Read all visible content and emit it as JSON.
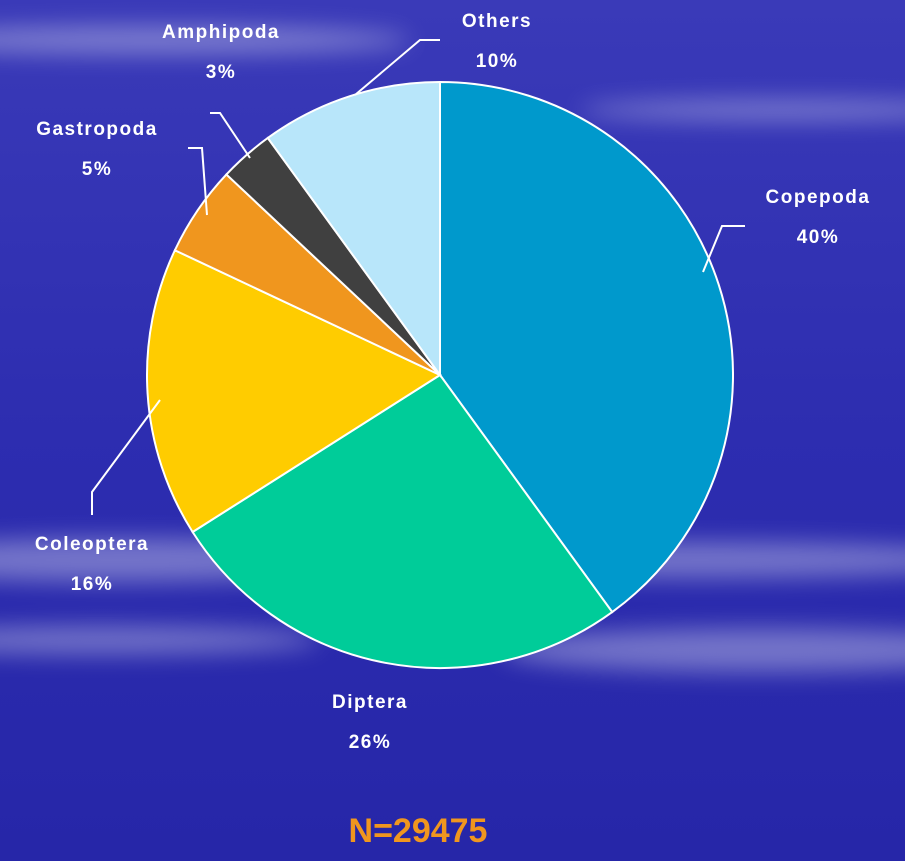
{
  "chart_data": {
    "type": "pie",
    "categories": [
      "Copepoda",
      "Diptera",
      "Coleoptera",
      "Gastropoda",
      "Amphipoda",
      "Others"
    ],
    "values": [
      40,
      26,
      16,
      5,
      3,
      10
    ],
    "value_labels": [
      "40%",
      "26%",
      "16%",
      "5%",
      "3%",
      "10%"
    ],
    "colors": [
      "#0099cc",
      "#00cc99",
      "#ffcc00",
      "#f0961e",
      "#404040",
      "#b8e6fa"
    ],
    "annotation": "N=29475"
  }
}
